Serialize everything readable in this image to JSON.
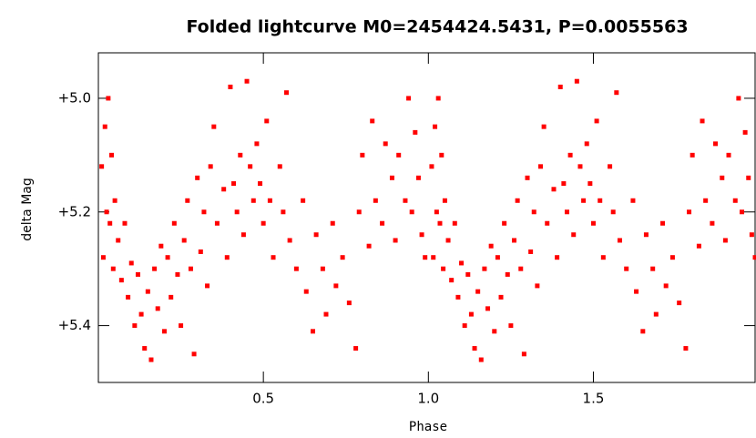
{
  "chart_data": {
    "type": "scatter",
    "title": "Folded lightcurve M0=2454424.5431, P=0.0055563",
    "x_label": "Phase",
    "y_label": "delta Mag",
    "color": "#ff0000",
    "y_inverted": true,
    "xlim": [
      0,
      1.99
    ],
    "ylim": [
      4.92,
      5.5
    ],
    "xticks": [
      0.5,
      {
        "value": 1,
        "label": "1.0"
      },
      1.5
    ],
    "yticks": [
      {
        "value": 5.0,
        "label": "+5.0"
      },
      {
        "value": 5.2,
        "label": "+5.2"
      },
      {
        "value": 5.4,
        "label": "+5.4"
      }
    ],
    "x": [
      0.01,
      0.015,
      0.02,
      0.025,
      0.03,
      0.035,
      0.04,
      0.045,
      0.05,
      0.06,
      0.07,
      0.08,
      0.09,
      0.1,
      0.11,
      0.12,
      0.13,
      0.14,
      0.15,
      0.16,
      0.17,
      0.18,
      0.19,
      0.2,
      0.21,
      0.22,
      0.23,
      0.24,
      0.25,
      0.26,
      0.27,
      0.28,
      0.29,
      0.3,
      0.31,
      0.32,
      0.33,
      0.34,
      0.35,
      0.36,
      0.38,
      0.39,
      0.4,
      0.41,
      0.42,
      0.43,
      0.44,
      0.45,
      0.46,
      0.47,
      0.48,
      0.49,
      0.5,
      0.51,
      0.52,
      0.53,
      0.55,
      0.56,
      0.57,
      0.58,
      0.6,
      0.62,
      0.63,
      0.65,
      0.66,
      0.68,
      0.69,
      0.71,
      0.72,
      0.74,
      0.76,
      0.78,
      0.79,
      0.8,
      0.82,
      0.83,
      0.84,
      0.86,
      0.87,
      0.89,
      0.9,
      0.91,
      0.93,
      0.94,
      0.95,
      0.96,
      0.97,
      0.98,
      0.99,
      1.01,
      1.015,
      1.02,
      1.025,
      1.03,
      1.035,
      1.04,
      1.045,
      1.05,
      1.06,
      1.07,
      1.08,
      1.09,
      1.1,
      1.11,
      1.12,
      1.13,
      1.14,
      1.15,
      1.16,
      1.17,
      1.18,
      1.19,
      1.2,
      1.21,
      1.22,
      1.23,
      1.24,
      1.25,
      1.26,
      1.27,
      1.28,
      1.29,
      1.3,
      1.31,
      1.32,
      1.33,
      1.34,
      1.35,
      1.36,
      1.38,
      1.39,
      1.4,
      1.41,
      1.42,
      1.43,
      1.44,
      1.45,
      1.46,
      1.47,
      1.48,
      1.49,
      1.5,
      1.51,
      1.52,
      1.53,
      1.55,
      1.56,
      1.57,
      1.58,
      1.6,
      1.62,
      1.63,
      1.65,
      1.66,
      1.68,
      1.69,
      1.71,
      1.72,
      1.74,
      1.76,
      1.78,
      1.79,
      1.8,
      1.82,
      1.83,
      1.84,
      1.86,
      1.87,
      1.89,
      1.9,
      1.91,
      1.93,
      1.94,
      1.95,
      1.96,
      1.97,
      1.98,
      1.99
    ],
    "values": [
      5.12,
      5.28,
      5.05,
      5.2,
      5.0,
      5.22,
      5.1,
      5.3,
      5.18,
      5.25,
      5.32,
      5.22,
      5.35,
      5.29,
      5.4,
      5.31,
      5.38,
      5.44,
      5.34,
      5.46,
      5.3,
      5.37,
      5.26,
      5.41,
      5.28,
      5.35,
      5.22,
      5.31,
      5.4,
      5.25,
      5.18,
      5.3,
      5.45,
      5.14,
      5.27,
      5.2,
      5.33,
      5.12,
      5.05,
      5.22,
      5.16,
      5.28,
      4.98,
      5.15,
      5.2,
      5.1,
      5.24,
      4.97,
      5.12,
      5.18,
      5.08,
      5.15,
      5.22,
      5.04,
      5.18,
      5.28,
      5.12,
      5.2,
      4.99,
      5.25,
      5.3,
      5.18,
      5.34,
      5.41,
      5.24,
      5.3,
      5.38,
      5.22,
      5.33,
      5.28,
      5.36,
      5.44,
      5.2,
      5.1,
      5.26,
      5.04,
      5.18,
      5.22,
      5.08,
      5.14,
      5.25,
      5.1,
      5.18,
      5.0,
      5.2,
      5.06,
      5.14,
      5.24,
      5.28,
      5.12,
      5.28,
      5.05,
      5.2,
      5.0,
      5.22,
      5.1,
      5.3,
      5.18,
      5.25,
      5.32,
      5.22,
      5.35,
      5.29,
      5.4,
      5.31,
      5.38,
      5.44,
      5.34,
      5.46,
      5.3,
      5.37,
      5.26,
      5.41,
      5.28,
      5.35,
      5.22,
      5.31,
      5.4,
      5.25,
      5.18,
      5.3,
      5.45,
      5.14,
      5.27,
      5.2,
      5.33,
      5.12,
      5.05,
      5.22,
      5.16,
      5.28,
      4.98,
      5.15,
      5.2,
      5.1,
      5.24,
      4.97,
      5.12,
      5.18,
      5.08,
      5.15,
      5.22,
      5.04,
      5.18,
      5.28,
      5.12,
      5.2,
      4.99,
      5.25,
      5.3,
      5.18,
      5.34,
      5.41,
      5.24,
      5.3,
      5.38,
      5.22,
      5.33,
      5.28,
      5.36,
      5.44,
      5.2,
      5.1,
      5.26,
      5.04,
      5.18,
      5.22,
      5.08,
      5.14,
      5.25,
      5.1,
      5.18,
      5.0,
      5.2,
      5.06,
      5.14,
      5.24,
      5.28
    ]
  }
}
